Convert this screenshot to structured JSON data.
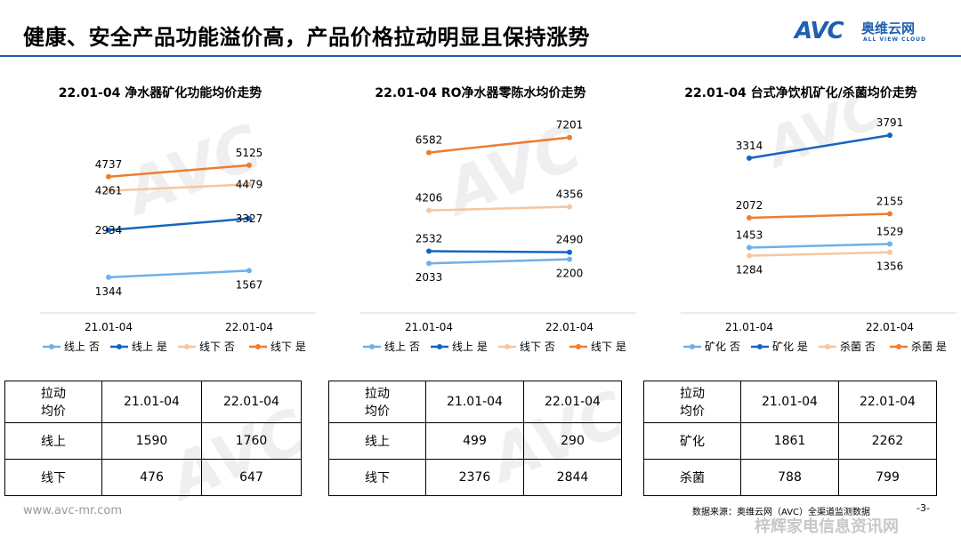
{
  "header": {
    "title": "健康、安全产品功能溢价高，产品价格拉动明显且保持涨势",
    "logo_text": "AVC",
    "logo_cn": "奥维云网",
    "logo_en": "ALL VIEW CLOUD"
  },
  "colors": {
    "accent": "#1f5fb0",
    "series_light_blue": "#6fb0e8",
    "series_dark_blue": "#1565c0",
    "series_light_orange": "#f5c6a0",
    "series_orange": "#ed7d31"
  },
  "chart_data": [
    {
      "type": "line",
      "title": "22.01-04 净水器矿化功能均价走势",
      "categories": [
        "21.01-04",
        "22.01-04"
      ],
      "ylim": [
        800,
        6800
      ],
      "series": [
        {
          "name": "线上 否",
          "values": [
            1344,
            1567
          ],
          "label_pos": "below"
        },
        {
          "name": "线上 是",
          "values": [
            2934,
            3327
          ],
          "label_pos": "mid"
        },
        {
          "name": "线下 否",
          "values": [
            4261,
            4479
          ],
          "label_pos": "mid"
        },
        {
          "name": "线下 是",
          "values": [
            4737,
            5125
          ],
          "label_pos": "above"
        }
      ]
    },
    {
      "type": "line",
      "title": "22.01-04 RO净水器零陈水均价走势",
      "categories": [
        "21.01-04",
        "22.01-04"
      ],
      "ylim": [
        800,
        8100
      ],
      "series": [
        {
          "name": "线上 否",
          "values": [
            2033,
            2200
          ],
          "label_pos": "below"
        },
        {
          "name": "线上 是",
          "values": [
            2532,
            2490
          ],
          "label_pos": "above"
        },
        {
          "name": "线下 否",
          "values": [
            4206,
            4356
          ],
          "label_pos": "above"
        },
        {
          "name": "线下 是",
          "values": [
            6582,
            7201
          ],
          "label_pos": "above"
        }
      ]
    },
    {
      "type": "line",
      "title": "22.01-04 台式净饮机矿化/杀菌均价走势",
      "categories": [
        "21.01-04",
        "22.01-04"
      ],
      "ylim": [
        500,
        4200
      ],
      "series": [
        {
          "name": "矿化 否",
          "values": [
            1453,
            1529
          ],
          "label_pos": "above"
        },
        {
          "name": "矿化 是",
          "values": [
            3314,
            3791
          ],
          "label_pos": "above"
        },
        {
          "name": "杀菌 否",
          "values": [
            1284,
            1356
          ],
          "label_pos": "below"
        },
        {
          "name": "杀菌 是",
          "values": [
            2072,
            2155
          ],
          "label_pos": "above"
        }
      ]
    }
  ],
  "tables": [
    {
      "corner": [
        "拉动",
        "均价"
      ],
      "cols": [
        "21.01-04",
        "22.01-04"
      ],
      "rows": [
        {
          "label": "线上",
          "values": [
            "1590",
            "1760"
          ]
        },
        {
          "label": "线下",
          "values": [
            "476",
            "647"
          ]
        }
      ]
    },
    {
      "corner": [
        "拉动",
        "均价"
      ],
      "cols": [
        "21.01-04",
        "22.01-04"
      ],
      "rows": [
        {
          "label": "线上",
          "values": [
            "499",
            "290"
          ]
        },
        {
          "label": "线下",
          "values": [
            "2376",
            "2844"
          ]
        }
      ]
    },
    {
      "corner": [
        "拉动",
        "均价"
      ],
      "cols": [
        "21.01-04",
        "22.01-04"
      ],
      "rows": [
        {
          "label": "矿化",
          "values": [
            "1861",
            "2262"
          ]
        },
        {
          "label": "杀菌",
          "values": [
            "788",
            "799"
          ]
        }
      ]
    }
  ],
  "footer": {
    "website": "www.avc-mr.com",
    "source": "数据来源：奥维云网（AVC）全渠道监测数据",
    "page": "-3-",
    "watermark": "梓辉家电信息资讯网"
  }
}
